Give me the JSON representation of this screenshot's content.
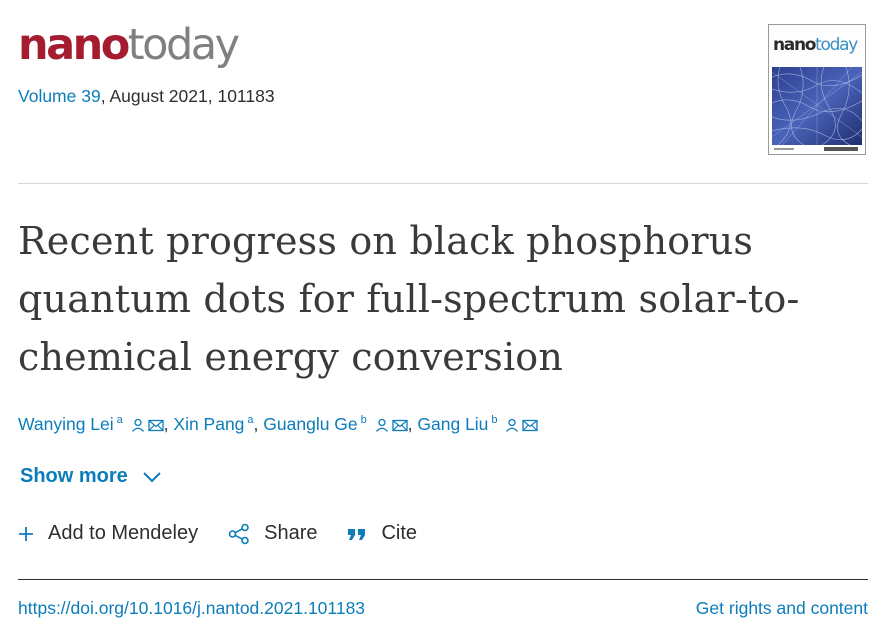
{
  "journal": {
    "logo_part1": "nano",
    "logo_part2": "today",
    "volume_link": "Volume 39",
    "issue_info": ", August 2021, 101183"
  },
  "cover": {
    "logo_part1": "nano",
    "logo_part2": "today",
    "icon": "journal-cover-thumbnail"
  },
  "article": {
    "title": "Recent progress on black phosphorus quantum dots for full-spectrum solar-to-chemical energy conversion"
  },
  "authors": [
    {
      "name": "Wanying Lei",
      "affiliation": "a",
      "has_person_icon": true,
      "has_email_icon": true,
      "separator": ", "
    },
    {
      "name": "Xin Pang",
      "affiliation": "a",
      "has_person_icon": false,
      "has_email_icon": false,
      "separator": ", "
    },
    {
      "name": "Guanglu Ge",
      "affiliation": "b",
      "has_person_icon": true,
      "has_email_icon": true,
      "separator": ", "
    },
    {
      "name": "Gang Liu",
      "affiliation": "b",
      "has_person_icon": true,
      "has_email_icon": true,
      "separator": ""
    }
  ],
  "show_more": {
    "label": "Show more",
    "icon": "chevron-down-icon"
  },
  "actions": {
    "mendeley": {
      "label": "Add to Mendeley",
      "icon": "plus-icon"
    },
    "share": {
      "label": "Share",
      "icon": "share-icon"
    },
    "cite": {
      "label": "Cite",
      "icon": "quote-icon"
    }
  },
  "footer": {
    "doi": "https://doi.org/10.1016/j.nantod.2021.101183",
    "rights": "Get rights and content"
  },
  "colors": {
    "link": "#0c7dbb",
    "brand_red": "#a51c30",
    "brand_gray": "#808080",
    "text": "#2e2e2e"
  }
}
